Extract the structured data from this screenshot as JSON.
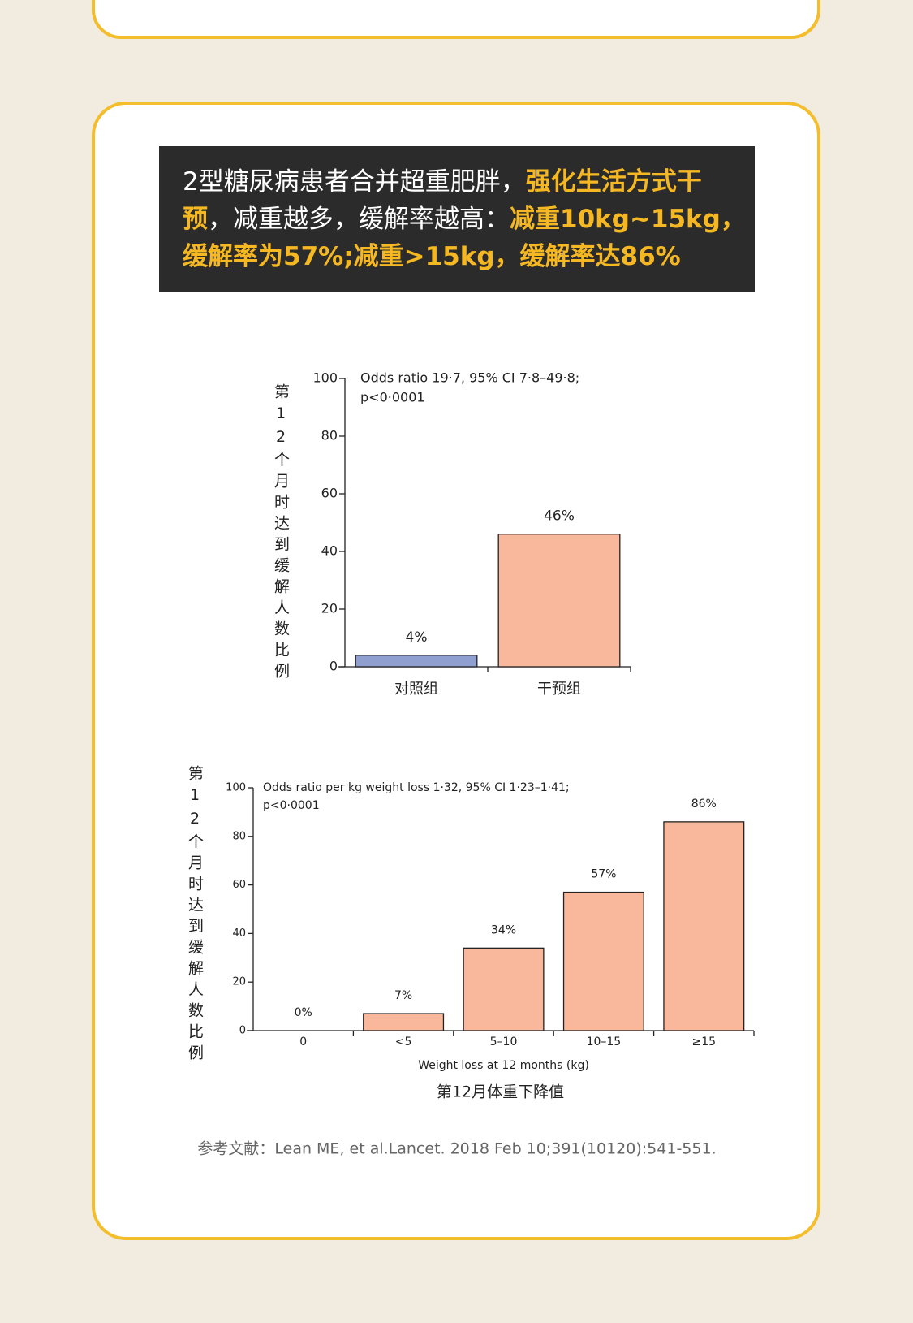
{
  "header": {
    "lines": [
      [
        {
          "text": "2型糖尿病患者合并超重肥胖，",
          "color": "#ffffff"
        },
        {
          "text": "强化生活方式干",
          "color": "#f5b823"
        }
      ],
      [
        {
          "text": "预",
          "color": "#f5b823"
        },
        {
          "text": "，减重越多，缓解率越高：",
          "color": "#ffffff"
        },
        {
          "text": "减重10kg~15kg，",
          "color": "#f5b823"
        }
      ],
      [
        {
          "text": "缓解率为57%;减重>15kg，缓解率达86%",
          "color": "#f5b823"
        }
      ]
    ]
  },
  "chart_data": [
    {
      "type": "bar",
      "ylabel": "第12个月时达到缓解人数比例",
      "annotation": [
        "Odds ratio 19·7, 95% CI 7·8–49·8;",
        "p<0·0001"
      ],
      "categories": [
        "对照组",
        "干预组"
      ],
      "values": [
        4,
        46
      ],
      "value_labels": [
        "4%",
        "46%"
      ],
      "colors": [
        "#8f9fd0",
        "#f9b89b"
      ],
      "ylim": [
        0,
        100
      ],
      "yticks": [
        0,
        20,
        40,
        60,
        80,
        100
      ]
    },
    {
      "type": "bar",
      "ylabel": "第12个月时达到缓解人数比例",
      "annotation": [
        "Odds ratio per kg weight loss 1·32, 95% CI 1·23–1·41;",
        "p<0·0001"
      ],
      "categories": [
        "0",
        "<5",
        "5–10",
        "10–15",
        "≥15"
      ],
      "values": [
        0,
        7,
        34,
        57,
        86
      ],
      "value_labels": [
        "0%",
        "7%",
        "34%",
        "57%",
        "86%"
      ],
      "colors": [
        "#f9b89b",
        "#f9b89b",
        "#f9b89b",
        "#f9b89b",
        "#f9b89b"
      ],
      "xlabel": "Weight loss at 12 months (kg)",
      "xlabel_cn": "第12月体重下降值",
      "ylim": [
        0,
        100
      ],
      "yticks": [
        0,
        20,
        40,
        60,
        80,
        100
      ]
    }
  ],
  "reference": "参考文献：Lean ME, et al.Lancet. 2018 Feb 10;391(10120):541-551."
}
